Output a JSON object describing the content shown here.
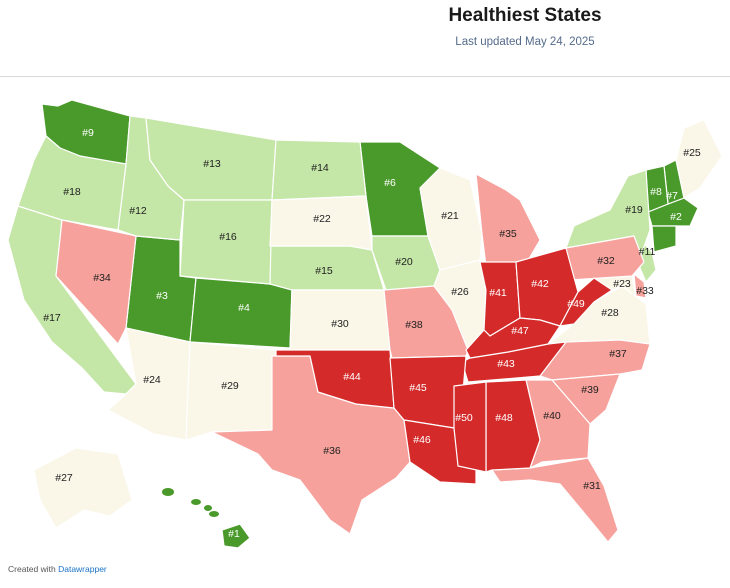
{
  "header": {
    "title": "Healthiest States",
    "subtitle": "Last updated May 24, 2025"
  },
  "footer": {
    "prefix": "Created with",
    "link": "Datawrapper"
  },
  "colors": {
    "top": "#4a9a2b",
    "good": "#c4e6a6",
    "mid": "#faf6e8",
    "poor": "#f6a19b",
    "worst": "#d42a2a"
  },
  "states": [
    {
      "id": "HI",
      "rank": "#1",
      "tier": "top"
    },
    {
      "id": "MA",
      "rank": "#2",
      "tier": "top"
    },
    {
      "id": "UT",
      "rank": "#3",
      "tier": "top"
    },
    {
      "id": "CO",
      "rank": "#4",
      "tier": "top"
    },
    {
      "id": "CT",
      "rank": "",
      "tier": "top"
    },
    {
      "id": "MN",
      "rank": "#6",
      "tier": "top"
    },
    {
      "id": "NH",
      "rank": "#7",
      "tier": "top"
    },
    {
      "id": "VT",
      "rank": "#8",
      "tier": "top"
    },
    {
      "id": "WA",
      "rank": "#9",
      "tier": "top"
    },
    {
      "id": "NJ",
      "rank": "#11",
      "tier": "good"
    },
    {
      "id": "ID",
      "rank": "#12",
      "tier": "good"
    },
    {
      "id": "MT",
      "rank": "#13",
      "tier": "good"
    },
    {
      "id": "ND",
      "rank": "#14",
      "tier": "good"
    },
    {
      "id": "NE",
      "rank": "#15",
      "tier": "good"
    },
    {
      "id": "WY",
      "rank": "#16",
      "tier": "good"
    },
    {
      "id": "CA",
      "rank": "#17",
      "tier": "good"
    },
    {
      "id": "OR",
      "rank": "#18",
      "tier": "good"
    },
    {
      "id": "NY",
      "rank": "#19",
      "tier": "good"
    },
    {
      "id": "IA",
      "rank": "#20",
      "tier": "good"
    },
    {
      "id": "WI",
      "rank": "#21",
      "tier": "mid"
    },
    {
      "id": "SD",
      "rank": "#22",
      "tier": "mid"
    },
    {
      "id": "MD",
      "rank": "#23",
      "tier": "mid"
    },
    {
      "id": "AZ",
      "rank": "#24",
      "tier": "mid"
    },
    {
      "id": "ME",
      "rank": "#25",
      "tier": "mid"
    },
    {
      "id": "IL",
      "rank": "#26",
      "tier": "mid"
    },
    {
      "id": "AK",
      "rank": "#27",
      "tier": "mid"
    },
    {
      "id": "VA",
      "rank": "#28",
      "tier": "mid"
    },
    {
      "id": "NM",
      "rank": "#29",
      "tier": "mid"
    },
    {
      "id": "KS",
      "rank": "#30",
      "tier": "mid"
    },
    {
      "id": "FL",
      "rank": "#31",
      "tier": "poor"
    },
    {
      "id": "PA",
      "rank": "#32",
      "tier": "poor"
    },
    {
      "id": "DE",
      "rank": "#33",
      "tier": "poor"
    },
    {
      "id": "NV",
      "rank": "#34",
      "tier": "poor"
    },
    {
      "id": "MI",
      "rank": "#35",
      "tier": "poor"
    },
    {
      "id": "TX",
      "rank": "#36",
      "tier": "poor"
    },
    {
      "id": "NC",
      "rank": "#37",
      "tier": "poor"
    },
    {
      "id": "MO",
      "rank": "#38",
      "tier": "poor"
    },
    {
      "id": "SC",
      "rank": "#39",
      "tier": "poor"
    },
    {
      "id": "GA",
      "rank": "#40",
      "tier": "poor"
    },
    {
      "id": "IN",
      "rank": "#41",
      "tier": "worst"
    },
    {
      "id": "OH",
      "rank": "#42",
      "tier": "worst"
    },
    {
      "id": "TN",
      "rank": "#43",
      "tier": "worst"
    },
    {
      "id": "OK",
      "rank": "#44",
      "tier": "worst"
    },
    {
      "id": "AR",
      "rank": "#45",
      "tier": "worst"
    },
    {
      "id": "LA",
      "rank": "#46",
      "tier": "worst"
    },
    {
      "id": "KY",
      "rank": "#47",
      "tier": "worst"
    },
    {
      "id": "AL",
      "rank": "#48",
      "tier": "worst"
    },
    {
      "id": "WV",
      "rank": "#49",
      "tier": "worst"
    },
    {
      "id": "MS",
      "rank": "#50",
      "tier": "worst"
    }
  ]
}
